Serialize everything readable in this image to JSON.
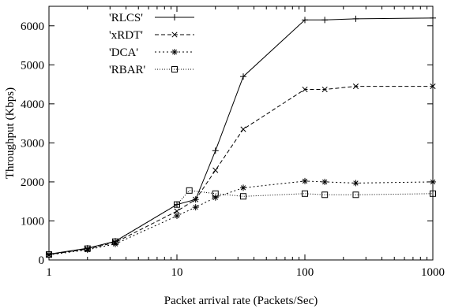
{
  "chart_data": {
    "type": "line",
    "xlabel": "Packet arrival rate (Packets/Sec)",
    "ylabel": "Throughput (Kbps)",
    "xscale": "log",
    "xlim": [
      1,
      1000
    ],
    "ylim": [
      0,
      6500
    ],
    "xticks": [
      1,
      10,
      100,
      1000
    ],
    "xtick_labels": [
      "1",
      "10",
      "100",
      "1000"
    ],
    "yticks": [
      0,
      1000,
      2000,
      3000,
      4000,
      5000,
      6000
    ],
    "ytick_labels": [
      "0",
      "1000",
      "2000",
      "3000",
      "4000",
      "5000",
      "6000"
    ],
    "grid": false,
    "legend_position": "top-left",
    "series": [
      {
        "name": "'RLCS'",
        "marker": "plus",
        "dash": "solid",
        "color": "#000000",
        "x": [
          1,
          2,
          3.3,
          10,
          14,
          20,
          33,
          100,
          143,
          250,
          1000
        ],
        "y": [
          150,
          300,
          480,
          1420,
          1550,
          2800,
          4700,
          6150,
          6150,
          6180,
          6200
        ]
      },
      {
        "name": "'xRDT'",
        "marker": "x",
        "dash": "dashed",
        "color": "#000000",
        "x": [
          1,
          2,
          3.3,
          10,
          14,
          20,
          33,
          100,
          143,
          250,
          1000
        ],
        "y": [
          140,
          280,
          450,
          1250,
          1550,
          2300,
          3350,
          4370,
          4370,
          4450,
          4450
        ]
      },
      {
        "name": "'DCA'",
        "marker": "star",
        "dash": "dotted",
        "color": "#000000",
        "x": [
          1,
          2,
          3.3,
          10,
          14,
          20,
          33,
          100,
          143,
          250,
          1000
        ],
        "y": [
          130,
          260,
          410,
          1130,
          1350,
          1600,
          1850,
          2020,
          2000,
          1970,
          2000
        ]
      },
      {
        "name": "'RBAR'",
        "marker": "square",
        "dash": "fine-dotted",
        "color": "#000000",
        "x": [
          1,
          2,
          3.3,
          10,
          12.5,
          20,
          33,
          100,
          143,
          250,
          1000
        ],
        "y": [
          140,
          290,
          470,
          1420,
          1780,
          1700,
          1630,
          1700,
          1670,
          1670,
          1700
        ]
      }
    ]
  }
}
